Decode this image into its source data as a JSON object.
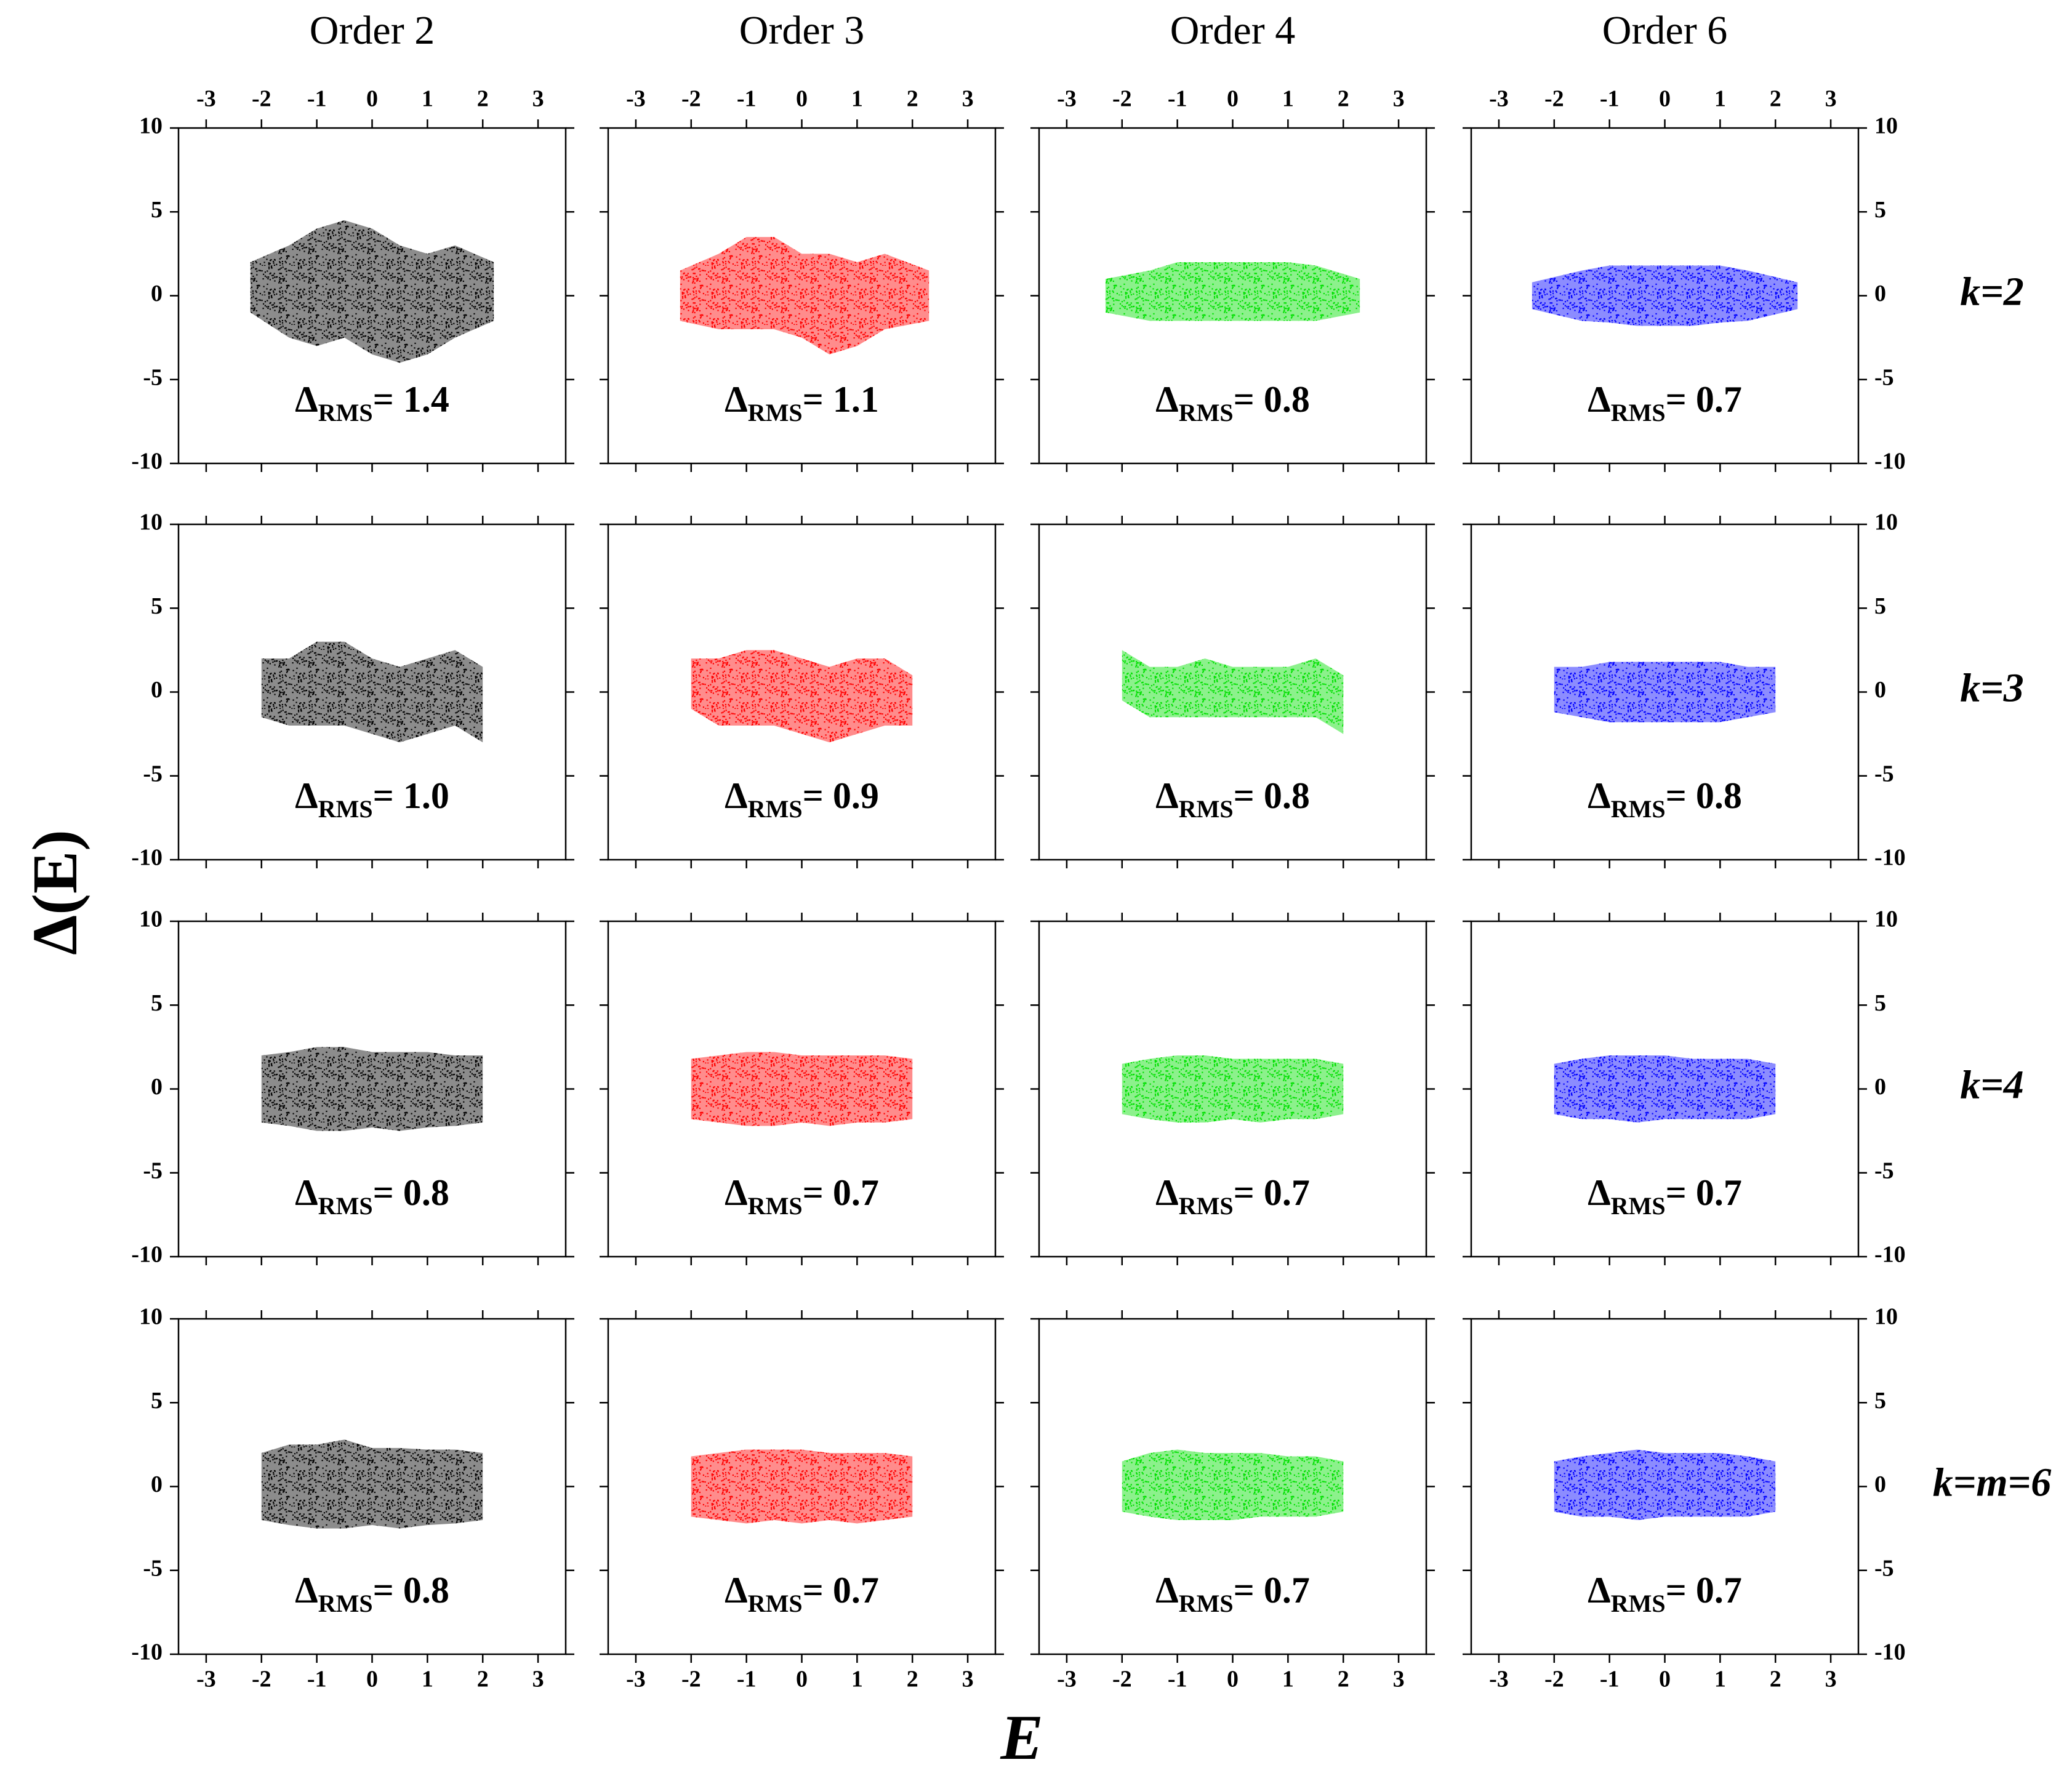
{
  "figure": {
    "xlabel": "E",
    "ylabel": "Δ(E)"
  },
  "chart_data": [
    {
      "type": "band",
      "title": "Order 2",
      "color": "#000000",
      "x": [
        -2.2,
        -1.5,
        -1,
        -0.5,
        0,
        0.5,
        1,
        1.5,
        2.2
      ],
      "upper": [
        2,
        3,
        4,
        4.5,
        4,
        3,
        2.5,
        3,
        2
      ],
      "lower": [
        -1,
        -2.5,
        -3,
        -2.5,
        -3.5,
        -4,
        -3.5,
        -2.5,
        -1.5
      ],
      "annotation": {
        "symbol": "Δ",
        "subscript": "RMS",
        "text": "= 1.4"
      },
      "xlim": [
        -3.5,
        3.5
      ],
      "ylim": [
        -10,
        10
      ],
      "xticks": [
        -3,
        -2,
        -1,
        0,
        1,
        2,
        3
      ],
      "yticks": [
        -10,
        -5,
        0,
        5,
        10
      ],
      "xtick_labels": "top",
      "ytick_labels": "left"
    },
    {
      "type": "band",
      "title": "Order 3",
      "color": "#ff0000",
      "x": [
        -2.2,
        -1.5,
        -1,
        -0.5,
        0,
        0.5,
        1,
        1.5,
        2.3
      ],
      "upper": [
        1.5,
        2.5,
        3.5,
        3.5,
        2.5,
        2.5,
        2,
        2.5,
        1.5
      ],
      "lower": [
        -1.5,
        -2,
        -2,
        -2,
        -2.5,
        -3.5,
        -3,
        -2,
        -1.5
      ],
      "annotation": {
        "symbol": "Δ",
        "subscript": "RMS",
        "text": "= 1.1"
      },
      "xlim": [
        -3.5,
        3.5
      ],
      "ylim": [
        -10,
        10
      ],
      "xticks": [
        -3,
        -2,
        -1,
        0,
        1,
        2,
        3
      ],
      "yticks": [
        -10,
        -5,
        0,
        5,
        10
      ],
      "xtick_labels": "top",
      "ytick_labels": "none"
    },
    {
      "type": "band",
      "title": "Order 4",
      "color": "#00e000",
      "x": [
        -2.3,
        -1.5,
        -1,
        -0.5,
        0,
        0.5,
        1,
        1.5,
        2.3
      ],
      "upper": [
        1,
        1.5,
        2,
        2,
        2,
        2,
        2,
        1.8,
        1
      ],
      "lower": [
        -1,
        -1.5,
        -1.5,
        -1.5,
        -1.5,
        -1.5,
        -1.5,
        -1.5,
        -1
      ],
      "annotation": {
        "symbol": "Δ",
        "subscript": "RMS",
        "text": "= 0.8"
      },
      "xlim": [
        -3.5,
        3.5
      ],
      "ylim": [
        -10,
        10
      ],
      "xticks": [
        -3,
        -2,
        -1,
        0,
        1,
        2,
        3
      ],
      "yticks": [
        -10,
        -5,
        0,
        5,
        10
      ],
      "xtick_labels": "top",
      "ytick_labels": "none"
    },
    {
      "type": "band",
      "title": "Order 6",
      "row_label": "k=2",
      "color": "#0000ff",
      "x": [
        -2.4,
        -1.5,
        -1,
        -0.5,
        0,
        0.5,
        1,
        1.5,
        2.4
      ],
      "upper": [
        0.8,
        1.5,
        1.8,
        1.8,
        1.8,
        1.8,
        1.8,
        1.5,
        0.8
      ],
      "lower": [
        -0.8,
        -1.5,
        -1.6,
        -1.8,
        -1.8,
        -1.8,
        -1.6,
        -1.5,
        -0.8
      ],
      "annotation": {
        "symbol": "Δ",
        "subscript": "RMS",
        "text": "= 0.7"
      },
      "xlim": [
        -3.5,
        3.5
      ],
      "ylim": [
        -10,
        10
      ],
      "xticks": [
        -3,
        -2,
        -1,
        0,
        1,
        2,
        3
      ],
      "yticks": [
        -10,
        -5,
        0,
        5,
        10
      ],
      "xtick_labels": "top",
      "ytick_labels": "right"
    },
    {
      "type": "band",
      "color": "#000000",
      "x": [
        -2,
        -1.5,
        -1,
        -0.5,
        0,
        0.5,
        1,
        1.5,
        2
      ],
      "upper": [
        2,
        2,
        3,
        3,
        2,
        1.5,
        2,
        2.5,
        1.5
      ],
      "lower": [
        -1.5,
        -2,
        -2,
        -2,
        -2.5,
        -3,
        -2.5,
        -2,
        -3
      ],
      "annotation": {
        "symbol": "Δ",
        "subscript": "RMS",
        "text": "= 1.0"
      },
      "xlim": [
        -3.5,
        3.5
      ],
      "ylim": [
        -10,
        10
      ],
      "xticks": [
        -3,
        -2,
        -1,
        0,
        1,
        2,
        3
      ],
      "yticks": [
        -10,
        -5,
        0,
        5,
        10
      ],
      "xtick_labels": "none",
      "ytick_labels": "left"
    },
    {
      "type": "band",
      "color": "#ff0000",
      "x": [
        -2,
        -1.5,
        -1,
        -0.5,
        0,
        0.5,
        1,
        1.5,
        2
      ],
      "upper": [
        2,
        2,
        2.5,
        2.5,
        2,
        1.5,
        2,
        2,
        1
      ],
      "lower": [
        -1,
        -2,
        -2,
        -2,
        -2.5,
        -3,
        -2.5,
        -2,
        -2
      ],
      "annotation": {
        "symbol": "Δ",
        "subscript": "RMS",
        "text": "= 0.9"
      },
      "xlim": [
        -3.5,
        3.5
      ],
      "ylim": [
        -10,
        10
      ],
      "xticks": [
        -3,
        -2,
        -1,
        0,
        1,
        2,
        3
      ],
      "yticks": [
        -10,
        -5,
        0,
        5,
        10
      ],
      "xtick_labels": "none",
      "ytick_labels": "none"
    },
    {
      "type": "band",
      "color": "#00e000",
      "x": [
        -2,
        -1.5,
        -1,
        -0.5,
        0,
        0.5,
        1,
        1.5,
        2
      ],
      "upper": [
        2.5,
        1.5,
        1.5,
        2,
        1.5,
        1.5,
        1.5,
        2,
        1
      ],
      "lower": [
        -0.5,
        -1.5,
        -1.5,
        -1.5,
        -1.5,
        -1.5,
        -1.5,
        -1.5,
        -2.5
      ],
      "annotation": {
        "symbol": "Δ",
        "subscript": "RMS",
        "text": "= 0.8"
      },
      "xlim": [
        -3.5,
        3.5
      ],
      "ylim": [
        -10,
        10
      ],
      "xticks": [
        -3,
        -2,
        -1,
        0,
        1,
        2,
        3
      ],
      "yticks": [
        -10,
        -5,
        0,
        5,
        10
      ],
      "xtick_labels": "none",
      "ytick_labels": "none"
    },
    {
      "type": "band",
      "row_label": "k=3",
      "color": "#0000ff",
      "x": [
        -2,
        -1.5,
        -1,
        -0.5,
        0,
        0.5,
        1,
        1.5,
        2
      ],
      "upper": [
        1.5,
        1.5,
        1.8,
        1.8,
        1.8,
        1.8,
        1.8,
        1.5,
        1.5
      ],
      "lower": [
        -1.2,
        -1.5,
        -1.8,
        -1.8,
        -1.8,
        -1.8,
        -1.8,
        -1.5,
        -1.2
      ],
      "annotation": {
        "symbol": "Δ",
        "subscript": "RMS",
        "text": "= 0.8"
      },
      "xlim": [
        -3.5,
        3.5
      ],
      "ylim": [
        -10,
        10
      ],
      "xticks": [
        -3,
        -2,
        -1,
        0,
        1,
        2,
        3
      ],
      "yticks": [
        -10,
        -5,
        0,
        5,
        10
      ],
      "xtick_labels": "none",
      "ytick_labels": "right"
    },
    {
      "type": "band",
      "color": "#000000",
      "x": [
        -2,
        -1.5,
        -1,
        -0.5,
        0,
        0.5,
        1,
        1.5,
        2
      ],
      "upper": [
        2,
        2.2,
        2.5,
        2.5,
        2.2,
        2.2,
        2.2,
        2,
        2
      ],
      "lower": [
        -2,
        -2.2,
        -2.5,
        -2.5,
        -2.3,
        -2.5,
        -2.3,
        -2.2,
        -2
      ],
      "annotation": {
        "symbol": "Δ",
        "subscript": "RMS",
        "text": "= 0.8"
      },
      "xlim": [
        -3.5,
        3.5
      ],
      "ylim": [
        -10,
        10
      ],
      "xticks": [
        -3,
        -2,
        -1,
        0,
        1,
        2,
        3
      ],
      "yticks": [
        -10,
        -5,
        0,
        5,
        10
      ],
      "xtick_labels": "none",
      "ytick_labels": "left"
    },
    {
      "type": "band",
      "color": "#ff0000",
      "x": [
        -2,
        -1.5,
        -1,
        -0.5,
        0,
        0.5,
        1,
        1.5,
        2
      ],
      "upper": [
        1.8,
        2,
        2.2,
        2.2,
        2,
        2,
        2,
        2,
        1.8
      ],
      "lower": [
        -1.8,
        -2,
        -2.2,
        -2.2,
        -2,
        -2.2,
        -2,
        -2,
        -1.8
      ],
      "annotation": {
        "symbol": "Δ",
        "subscript": "RMS",
        "text": "= 0.7"
      },
      "xlim": [
        -3.5,
        3.5
      ],
      "ylim": [
        -10,
        10
      ],
      "xticks": [
        -3,
        -2,
        -1,
        0,
        1,
        2,
        3
      ],
      "yticks": [
        -10,
        -5,
        0,
        5,
        10
      ],
      "xtick_labels": "none",
      "ytick_labels": "none"
    },
    {
      "type": "band",
      "color": "#00e000",
      "x": [
        -2,
        -1.5,
        -1,
        -0.5,
        0,
        0.5,
        1,
        1.5,
        2
      ],
      "upper": [
        1.5,
        1.8,
        2,
        2,
        1.8,
        1.8,
        1.8,
        1.8,
        1.5
      ],
      "lower": [
        -1.5,
        -1.8,
        -2,
        -2,
        -1.8,
        -2,
        -1.8,
        -1.8,
        -1.5
      ],
      "annotation": {
        "symbol": "Δ",
        "subscript": "RMS",
        "text": "= 0.7"
      },
      "xlim": [
        -3.5,
        3.5
      ],
      "ylim": [
        -10,
        10
      ],
      "xticks": [
        -3,
        -2,
        -1,
        0,
        1,
        2,
        3
      ],
      "yticks": [
        -10,
        -5,
        0,
        5,
        10
      ],
      "xtick_labels": "none",
      "ytick_labels": "none"
    },
    {
      "type": "band",
      "row_label": "k=4",
      "color": "#0000ff",
      "x": [
        -2,
        -1.5,
        -1,
        -0.5,
        0,
        0.5,
        1,
        1.5,
        2
      ],
      "upper": [
        1.5,
        1.8,
        2,
        2,
        2,
        1.8,
        1.8,
        1.8,
        1.5
      ],
      "lower": [
        -1.5,
        -1.8,
        -1.8,
        -2,
        -1.8,
        -1.8,
        -1.8,
        -1.8,
        -1.5
      ],
      "annotation": {
        "symbol": "Δ",
        "subscript": "RMS",
        "text": "= 0.7"
      },
      "xlim": [
        -3.5,
        3.5
      ],
      "ylim": [
        -10,
        10
      ],
      "xticks": [
        -3,
        -2,
        -1,
        0,
        1,
        2,
        3
      ],
      "yticks": [
        -10,
        -5,
        0,
        5,
        10
      ],
      "xtick_labels": "none",
      "ytick_labels": "right"
    },
    {
      "type": "band",
      "color": "#000000",
      "x": [
        -2,
        -1.5,
        -1,
        -0.5,
        0,
        0.5,
        1,
        1.5,
        2
      ],
      "upper": [
        2,
        2.5,
        2.5,
        2.8,
        2.3,
        2.3,
        2.2,
        2.2,
        2
      ],
      "lower": [
        -2,
        -2.3,
        -2.5,
        -2.5,
        -2.3,
        -2.5,
        -2.3,
        -2.2,
        -2
      ],
      "annotation": {
        "symbol": "Δ",
        "subscript": "RMS",
        "text": "= 0.8"
      },
      "xlim": [
        -3.5,
        3.5
      ],
      "ylim": [
        -10,
        10
      ],
      "xticks": [
        -3,
        -2,
        -1,
        0,
        1,
        2,
        3
      ],
      "yticks": [
        -10,
        -5,
        0,
        5,
        10
      ],
      "xtick_labels": "bottom",
      "ytick_labels": "left"
    },
    {
      "type": "band",
      "color": "#ff0000",
      "x": [
        -2,
        -1.5,
        -1,
        -0.5,
        0,
        0.5,
        1,
        1.5,
        2
      ],
      "upper": [
        1.8,
        2,
        2.2,
        2.2,
        2.2,
        2,
        2,
        2,
        1.8
      ],
      "lower": [
        -1.8,
        -2,
        -2.2,
        -2,
        -2.2,
        -2,
        -2.2,
        -2,
        -1.8
      ],
      "annotation": {
        "symbol": "Δ",
        "subscript": "RMS",
        "text": "= 0.7"
      },
      "xlim": [
        -3.5,
        3.5
      ],
      "ylim": [
        -10,
        10
      ],
      "xticks": [
        -3,
        -2,
        -1,
        0,
        1,
        2,
        3
      ],
      "yticks": [
        -10,
        -5,
        0,
        5,
        10
      ],
      "xtick_labels": "bottom",
      "ytick_labels": "none"
    },
    {
      "type": "band",
      "color": "#00e000",
      "x": [
        -2,
        -1.5,
        -1,
        -0.5,
        0,
        0.5,
        1,
        1.5,
        2
      ],
      "upper": [
        1.5,
        2,
        2.2,
        2,
        2,
        2,
        1.8,
        1.8,
        1.5
      ],
      "lower": [
        -1.5,
        -1.8,
        -2,
        -2,
        -2,
        -1.8,
        -1.8,
        -1.8,
        -1.5
      ],
      "annotation": {
        "symbol": "Δ",
        "subscript": "RMS",
        "text": "= 0.7"
      },
      "xlim": [
        -3.5,
        3.5
      ],
      "ylim": [
        -10,
        10
      ],
      "xticks": [
        -3,
        -2,
        -1,
        0,
        1,
        2,
        3
      ],
      "yticks": [
        -10,
        -5,
        0,
        5,
        10
      ],
      "xtick_labels": "bottom",
      "ytick_labels": "none"
    },
    {
      "type": "band",
      "row_label": "k=m=6",
      "color": "#0000ff",
      "x": [
        -2,
        -1.5,
        -1,
        -0.5,
        0,
        0.5,
        1,
        1.5,
        2
      ],
      "upper": [
        1.5,
        1.8,
        2,
        2.2,
        2,
        2,
        2,
        1.8,
        1.5
      ],
      "lower": [
        -1.5,
        -1.8,
        -1.8,
        -2,
        -1.8,
        -1.8,
        -1.8,
        -1.8,
        -1.5
      ],
      "annotation": {
        "symbol": "Δ",
        "subscript": "RMS",
        "text": "= 0.7"
      },
      "xlim": [
        -3.5,
        3.5
      ],
      "ylim": [
        -10,
        10
      ],
      "xticks": [
        -3,
        -2,
        -1,
        0,
        1,
        2,
        3
      ],
      "yticks": [
        -10,
        -5,
        0,
        5,
        10
      ],
      "xtick_labels": "bottom",
      "ytick_labels": "right"
    }
  ]
}
